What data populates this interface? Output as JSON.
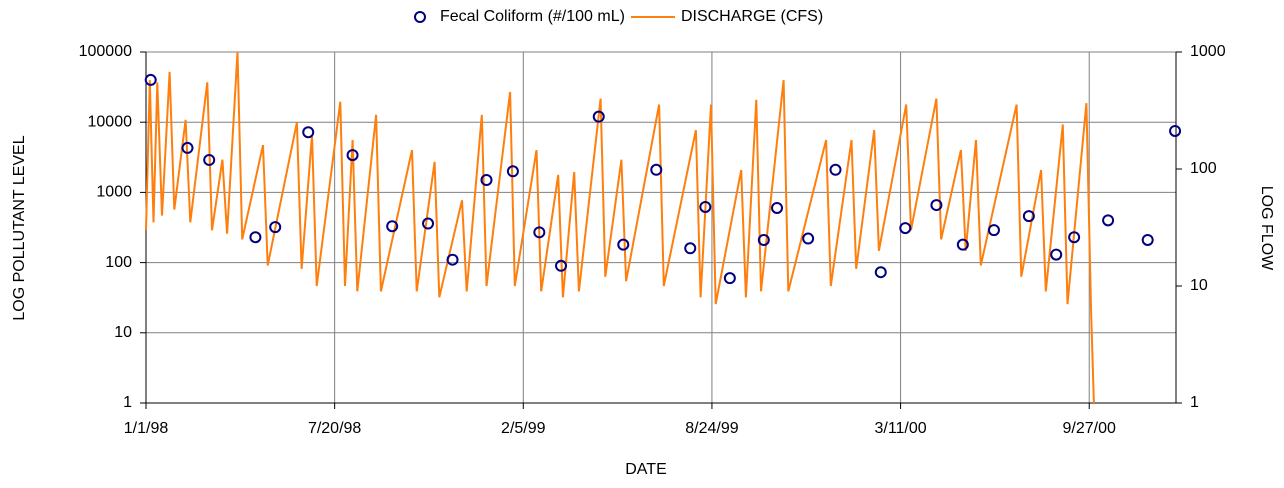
{
  "chart_data": {
    "type": "scatter-line",
    "xlabel": "DATE",
    "ylabel": "LOG POLLUTANT LEVEL",
    "y2label": "LOG FLOW",
    "xlim": [
      "1/1/98",
      "12/28/00"
    ],
    "xticks": [
      "1/1/98",
      "7/20/98",
      "2/5/99",
      "8/24/99",
      "3/11/00",
      "9/27/00"
    ],
    "ylim": [
      1,
      100000
    ],
    "yticks": [
      1,
      10,
      100,
      1000,
      10000,
      100000
    ],
    "y2lim": [
      1,
      1000
    ],
    "y2ticks": [
      1,
      10,
      100,
      1000
    ],
    "log_scale": true,
    "grid": true,
    "legend": "top",
    "series": [
      {
        "name": "Fecal Coliform (#/100 mL)",
        "kind": "scatter",
        "color": "#000080",
        "x": [
          "1/6/98",
          "2/14/98",
          "3/9/98",
          "4/27/98",
          "5/18/98",
          "6/22/98",
          "8/8/98",
          "9/19/98",
          "10/27/98",
          "11/22/98",
          "12/28/98",
          "1/25/99",
          "2/22/99",
          "3/17/99",
          "4/26/99",
          "5/22/99",
          "6/26/99",
          "8/1/99",
          "8/17/99",
          "9/12/99",
          "10/18/99",
          "11/1/99",
          "12/4/99",
          "1/2/00",
          "2/19/00",
          "3/16/00",
          "4/18/00",
          "5/16/00",
          "6/18/00",
          "7/25/00",
          "8/23/00",
          "9/11/00",
          "10/17/00",
          "11/28/00",
          "12/27/00"
        ],
        "values": [
          40000,
          4300,
          2900,
          230,
          320,
          7200,
          3400,
          330,
          360,
          110,
          1500,
          2000,
          270,
          90,
          12000,
          180,
          2100,
          160,
          620,
          60,
          210,
          600,
          220,
          2100,
          73,
          310,
          660,
          180,
          290,
          460,
          130,
          230,
          400,
          210,
          7500
        ]
      },
      {
        "name": "DISCHARGE (CFS)",
        "kind": "line",
        "axis": "y2",
        "color": "#ff7f0e",
        "x": [
          "1/1/98",
          "1/5/98",
          "1/9/98",
          "1/13/98",
          "1/18/98",
          "1/26/98",
          "1/31/98",
          "2/12/98",
          "2/17/98",
          "3/7/98",
          "3/12/98",
          "3/23/98",
          "3/28/98",
          "4/8/98",
          "4/13/98",
          "5/5/98",
          "5/10/98",
          "6/10/98",
          "6/15/98",
          "6/26/98",
          "7/1/98",
          "7/26/98",
          "7/31/98",
          "8/8/98",
          "8/13/98",
          "9/2/98",
          "9/7/98",
          "10/10/98",
          "10/15/98",
          "11/3/98",
          "11/8/98",
          "12/2/98",
          "12/7/98",
          "12/23/98",
          "12/28/98",
          "1/22/99",
          "1/27/99",
          "2/19/99",
          "2/24/99",
          "3/14/99",
          "3/19/99",
          "3/31/99",
          "4/5/99",
          "4/28/99",
          "5/3/99",
          "5/20/99",
          "5/25/99",
          "6/29/99",
          "7/4/99",
          "8/7/99",
          "8/12/99",
          "8/23/99",
          "8/28/99",
          "9/24/99",
          "9/29/99",
          "10/10/99",
          "10/15/99",
          "11/8/99",
          "11/13/99",
          "12/23/99",
          "12/28/99",
          "1/19/00",
          "1/24/00",
          "2/12/00",
          "2/17/00",
          "3/17/00",
          "3/22/00",
          "4/18/00",
          "4/23/00",
          "5/14/00",
          "5/19/00",
          "5/30/00",
          "6/4/00",
          "7/12/00",
          "7/17/00",
          "8/7/00",
          "8/12/00",
          "8/30/00",
          "9/4/00",
          "9/24/00",
          "9/29/00",
          "10/2/00"
        ],
        "values": [
          30,
          575,
          35,
          550,
          40,
          676,
          45,
          263,
          35,
          550,
          30,
          120,
          28,
          1000,
          25,
          160,
          15,
          250,
          14,
          195,
          10,
          375,
          10,
          177,
          9,
          290,
          9,
          145,
          9,
          115,
          8,
          54,
          9,
          290,
          10,
          455,
          10,
          145,
          9,
          89,
          8,
          94,
          9,
          400,
          12,
          120,
          11,
          355,
          10,
          215,
          8,
          355,
          7,
          98,
          8,
          390,
          9,
          575,
          9,
          177,
          10,
          177,
          14,
          215,
          20,
          355,
          30,
          400,
          25,
          145,
          20,
          177,
          15,
          355,
          12,
          98,
          9,
          240,
          7,
          365,
          6,
          1
        ]
      }
    ]
  }
}
